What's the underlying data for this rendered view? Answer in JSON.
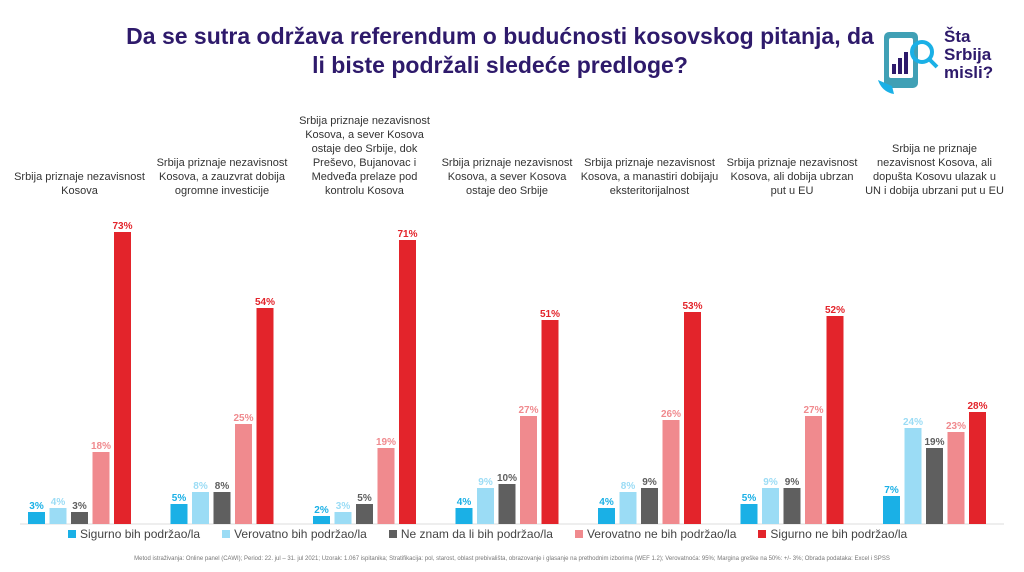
{
  "header": {
    "title": "Da se sutra održava referendum o budućnosti kosovskog pitanja, da li biste podržali sledeće predloge?",
    "logo_lines": [
      "Šta",
      "Srbija",
      "misli?"
    ],
    "logo_icon": "smartphone-chart-icon"
  },
  "colors": {
    "title": "#2e1a6b",
    "series": [
      "#1ab0e6",
      "#9bdcf5",
      "#5f5f5f",
      "#f08a8e",
      "#e3242b"
    ]
  },
  "chart_data": {
    "type": "bar",
    "title": "Da se sutra održava referendum o budućnosti kosovskog pitanja, da li biste podržali sledeće predloge?",
    "categories": [
      "Srbija priznaje nezavisnost Kosova",
      "Srbija priznaje nezavisnost Kosova, a zauzvrat dobija ogromne investicije",
      "Srbija priznaje nezavisnost Kosova, a sever Kosova ostaje deo Srbije, dok Preševo, Bujanovac i Medveđa prelaze pod kontrolu Kosova",
      "Srbija priznaje nezavisnost Kosova, a sever Kosova ostaje deo Srbije",
      "Srbija priznaje nezavisnost Kosova, a manastiri dobijaju eksteritorijalnost",
      "Srbija priznaje nezavisnost Kosova, ali dobija ubrzan put u EU",
      "Srbija ne priznaje nezavisnost Kosova, ali dopušta Kosovu ulazak u UN i dobija ubrzani put u EU"
    ],
    "series": [
      {
        "name": "Sigurno bih podržao/la",
        "values": [
          3,
          5,
          2,
          4,
          4,
          5,
          7
        ]
      },
      {
        "name": "Verovatno bih podržao/la",
        "values": [
          4,
          8,
          3,
          9,
          8,
          9,
          24
        ]
      },
      {
        "name": "Ne znam da li bih podržao/la",
        "values": [
          3,
          8,
          5,
          10,
          9,
          9,
          19
        ]
      },
      {
        "name": "Verovatno ne bih podržao/la",
        "values": [
          18,
          25,
          19,
          27,
          26,
          27,
          23
        ]
      },
      {
        "name": "Sigurno ne bih podržao/la",
        "values": [
          73,
          54,
          71,
          51,
          53,
          52,
          28
        ]
      }
    ],
    "value_suffix": "%",
    "ylim": [
      0,
      75
    ],
    "legend_position": "bottom",
    "grid": false
  },
  "footnote": "Metod istraživanja: Online panel (CAWI); Period: 22. jul – 31. jul 2021; Uzorak: 1.067 ispitanika; Stratifikacija: pol, starost, oblast prebivališta, obrazovanje i glasanje na prethodnim izborima (WEF 1.2); Verovatnoća: 95%; Margina greške na 50%: +/- 3%; Obrada podataka: Excel i SPSS"
}
